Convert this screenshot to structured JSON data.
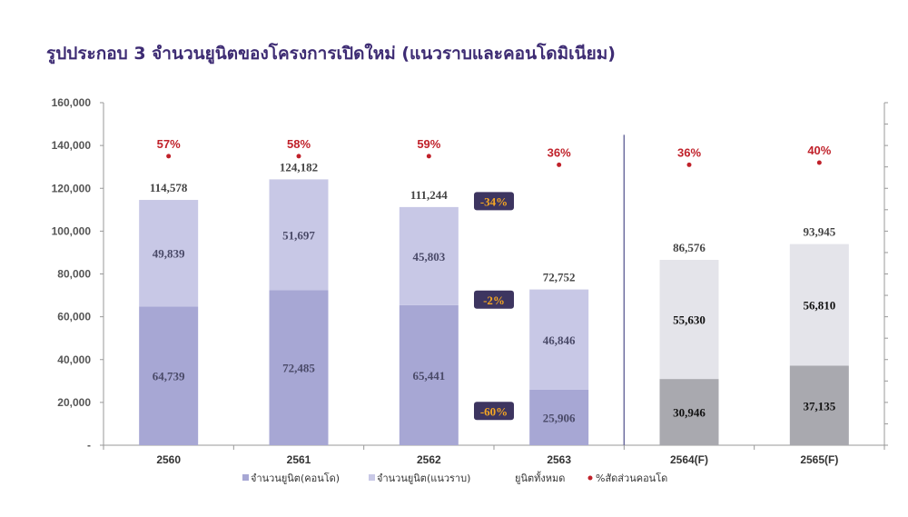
{
  "title": "รูปประกอบ 3 จำนวนยูนิตของโครงการเปิดใหม่ (แนวราบและคอนโดมิเนียม)",
  "chart_data": {
    "type": "bar",
    "stacked": true,
    "title": "รูปประกอบ 3 จำนวนยูนิตของโครงการเปิดใหม่ (แนวราบและคอนโดมิเนียม)",
    "xlabel": "",
    "ylabel": "",
    "ylim": [
      0,
      160000
    ],
    "y_ticks": [
      "-",
      "20,000",
      "40,000",
      "60,000",
      "80,000",
      "100,000",
      "120,000",
      "140,000",
      "160,000"
    ],
    "y_tick_values": [
      0,
      20000,
      40000,
      60000,
      80000,
      100000,
      120000,
      140000,
      160000
    ],
    "right_axis": true,
    "grid": false,
    "legend_position": "bottom",
    "categories": [
      "2560",
      "2561",
      "2562",
      "2563",
      "2564(F)",
      "2565(F)"
    ],
    "series": [
      {
        "name": "จำนวนยูนิต(คอนโด)",
        "values": [
          64739,
          72485,
          65441,
          25906,
          30946,
          37135
        ],
        "labels": [
          "64,739",
          "72,485",
          "65,441",
          "25,906",
          "30,946",
          "37,135"
        ]
      },
      {
        "name": "จำนวนยูนิต(แนวราบ)",
        "values": [
          49839,
          51697,
          45803,
          46846,
          55630,
          56810
        ],
        "labels": [
          "49,839",
          "51,697",
          "45,803",
          "46,846",
          "55,630",
          "56,810"
        ]
      }
    ],
    "totals": {
      "name": "ยูนิตทั้งหมด",
      "values": [
        114578,
        124182,
        111244,
        72752,
        86576,
        93945
      ],
      "labels": [
        "114,578",
        "124,182",
        "111,244",
        "72,752",
        "86,576",
        "93,945"
      ]
    },
    "condo_share": {
      "name": "%สัดส่วนคอนโด",
      "values": [
        57,
        58,
        59,
        36,
        36,
        40
      ],
      "labels": [
        "57%",
        "58%",
        "59%",
        "36%",
        "36%",
        "40%"
      ],
      "marker_y": [
        135000,
        135000,
        135000,
        131000,
        131000,
        132000
      ]
    },
    "changes": [
      {
        "label": "-34%",
        "y": 114000
      },
      {
        "label": "-2%",
        "y": 68000
      },
      {
        "label": "-60%",
        "y": 16000
      }
    ],
    "forecast_start_index": 4,
    "colors": {
      "condo": "#a7a7d4",
      "lowrise": "#c8c8e6",
      "condo_forecast": "#a9a9af",
      "lowrise_forecast": "#e4e4ea",
      "share_marker": "#c0212a",
      "share_text": "#c0212a",
      "change_badge": "#3d3560",
      "change_text": "#f5a623",
      "divider": "#6b6b9e",
      "axis": "#999999",
      "title": "#3d2b73"
    }
  }
}
